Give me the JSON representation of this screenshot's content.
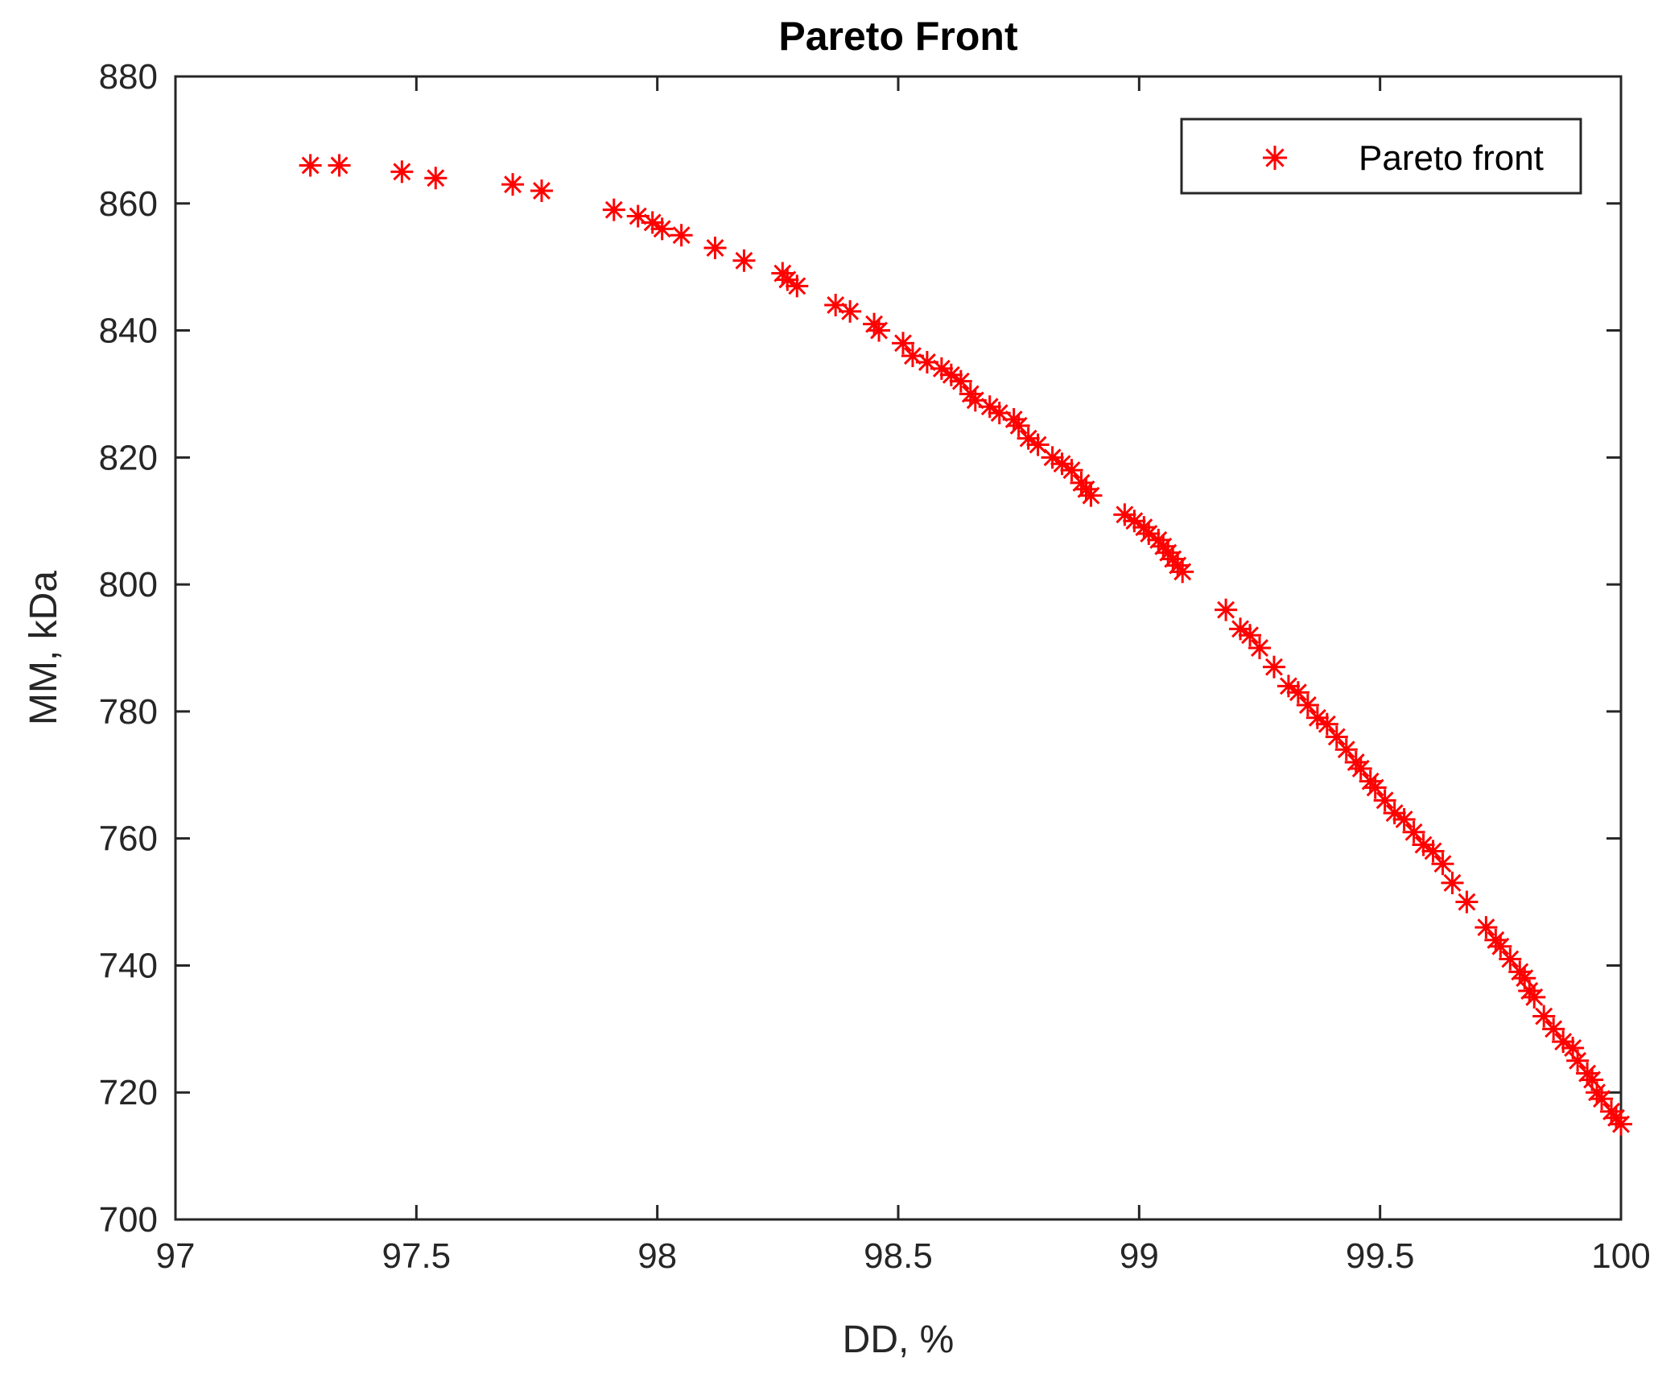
{
  "chart_data": {
    "type": "scatter",
    "title": "Pareto Front",
    "xlabel": "DD, %",
    "ylabel": "MM, kDa",
    "xlim": [
      97,
      100
    ],
    "ylim": [
      700,
      880
    ],
    "xticks": [
      "97",
      "97.5",
      "98",
      "98.5",
      "99",
      "99.5",
      "100"
    ],
    "yticks": [
      "700",
      "720",
      "740",
      "760",
      "780",
      "800",
      "820",
      "840",
      "860",
      "880"
    ],
    "grid": false,
    "legend_position": "top-right",
    "marker": "asterisk",
    "series": [
      {
        "name": "Pareto front",
        "color": "#ff0000",
        "x": [
          97.28,
          97.34,
          97.47,
          97.54,
          97.7,
          97.76,
          97.91,
          97.96,
          97.99,
          98.01,
          98.05,
          98.12,
          98.18,
          98.26,
          98.27,
          98.29,
          98.37,
          98.4,
          98.45,
          98.46,
          98.51,
          98.53,
          98.56,
          98.59,
          98.61,
          98.63,
          98.65,
          98.66,
          98.69,
          98.71,
          98.74,
          98.75,
          98.77,
          98.79,
          98.82,
          98.84,
          98.86,
          98.88,
          98.89,
          98.9,
          98.97,
          98.99,
          99.01,
          99.02,
          99.04,
          99.05,
          99.06,
          99.07,
          99.08,
          99.09,
          99.18,
          99.21,
          99.23,
          99.25,
          99.28,
          99.31,
          99.33,
          99.35,
          99.37,
          99.39,
          99.41,
          99.43,
          99.45,
          99.46,
          99.48,
          99.49,
          99.51,
          99.53,
          99.55,
          99.57,
          99.59,
          99.61,
          99.63,
          99.65,
          99.68,
          99.72,
          99.74,
          99.75,
          99.77,
          99.79,
          99.8,
          99.81,
          99.82,
          99.84,
          99.86,
          99.88,
          99.9,
          99.91,
          99.93,
          99.94,
          99.95,
          99.96,
          99.98,
          99.99,
          100.0
        ],
        "y": [
          866,
          866,
          865,
          864,
          863,
          862,
          859,
          858,
          857,
          856,
          855,
          853,
          851,
          849,
          848,
          847,
          844,
          843,
          841,
          840,
          838,
          836,
          835,
          834,
          833,
          832,
          830,
          829,
          828,
          827,
          826,
          825,
          823,
          822,
          820,
          819,
          818,
          816,
          815,
          814,
          811,
          810,
          809,
          808,
          807,
          806,
          805,
          804,
          803,
          802,
          796,
          793,
          792,
          790,
          787,
          784,
          783,
          781,
          779,
          778,
          776,
          774,
          772,
          771,
          769,
          768,
          766,
          764,
          763,
          761,
          759,
          758,
          756,
          753,
          750,
          746,
          744,
          743,
          741,
          739,
          738,
          736,
          735,
          732,
          730,
          728,
          727,
          725,
          723,
          722,
          720,
          719,
          717,
          716,
          715
        ]
      }
    ]
  }
}
